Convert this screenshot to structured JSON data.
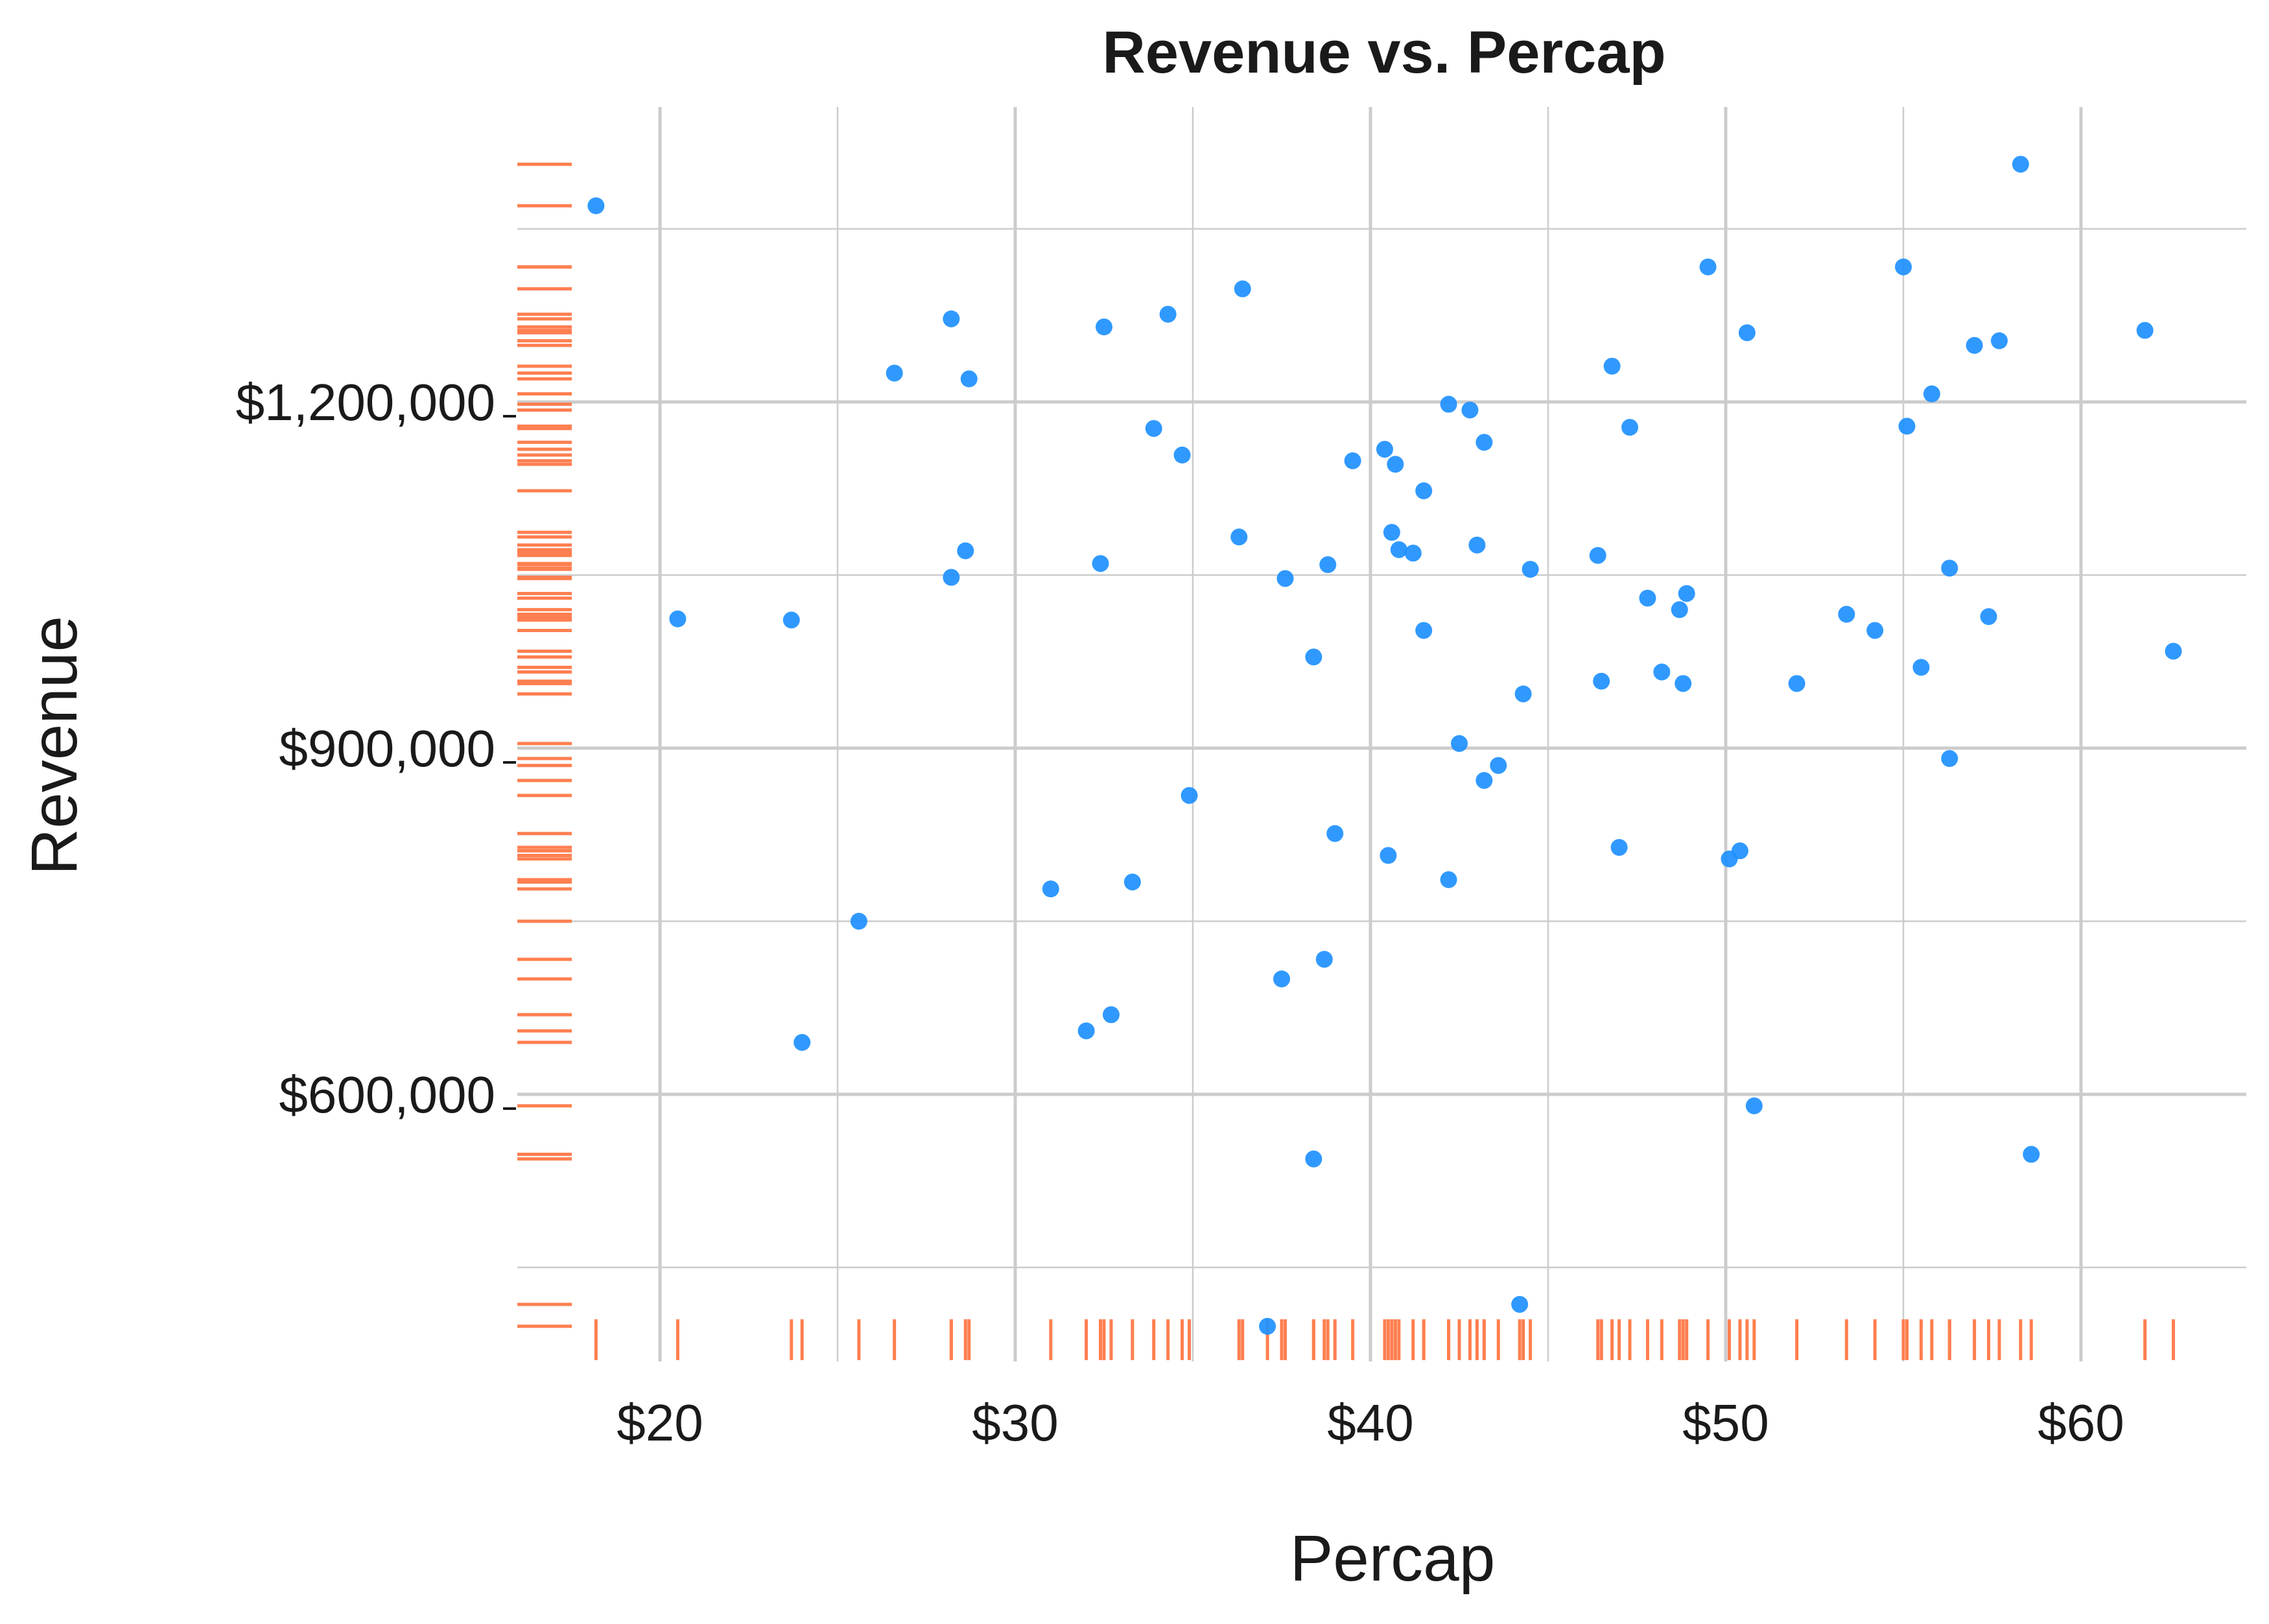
{
  "chart_data": {
    "type": "scatter",
    "title": "Revenue vs. Percap",
    "xlabel": "Percap",
    "ylabel": "Revenue",
    "xlim": [
      15.9,
      65.0
    ],
    "ylim": [
      350000,
      1400000
    ],
    "x_ticks": [
      20,
      30,
      40,
      50,
      60
    ],
    "x_tick_labels": [
      "$20",
      "$30",
      "$40",
      "$50",
      "$60"
    ],
    "y_ticks": [
      600000,
      900000,
      1200000
    ],
    "y_tick_labels": [
      "$600,000",
      "$900,000",
      "$1,200,000"
    ],
    "grid": true,
    "rug": true,
    "colors": {
      "points": "#1E90FF",
      "rug": "#FF7F50",
      "grid": "#CCCCCC",
      "text": "#1A1A1A"
    },
    "points": [
      {
        "x": 18.2,
        "y": 1370000
      },
      {
        "x": 20.5,
        "y": 1012000
      },
      {
        "x": 23.7,
        "y": 1011000
      },
      {
        "x": 24.0,
        "y": 645000
      },
      {
        "x": 25.6,
        "y": 750000
      },
      {
        "x": 26.6,
        "y": 1225000
      },
      {
        "x": 28.2,
        "y": 1048000
      },
      {
        "x": 28.2,
        "y": 1272000
      },
      {
        "x": 28.6,
        "y": 1071000
      },
      {
        "x": 28.7,
        "y": 1220000
      },
      {
        "x": 31.0,
        "y": 778000
      },
      {
        "x": 32.0,
        "y": 655000
      },
      {
        "x": 32.4,
        "y": 1060000
      },
      {
        "x": 32.5,
        "y": 1265000
      },
      {
        "x": 32.7,
        "y": 669000
      },
      {
        "x": 33.3,
        "y": 784000
      },
      {
        "x": 33.9,
        "y": 1177000
      },
      {
        "x": 34.3,
        "y": 1276000
      },
      {
        "x": 34.7,
        "y": 1154000
      },
      {
        "x": 34.9,
        "y": 859000
      },
      {
        "x": 36.3,
        "y": 1083000
      },
      {
        "x": 36.4,
        "y": 1298000
      },
      {
        "x": 37.1,
        "y": 399000
      },
      {
        "x": 37.5,
        "y": 700000
      },
      {
        "x": 37.6,
        "y": 1047000
      },
      {
        "x": 38.4,
        "y": 544000
      },
      {
        "x": 38.4,
        "y": 979000
      },
      {
        "x": 38.7,
        "y": 717000
      },
      {
        "x": 38.8,
        "y": 1059000
      },
      {
        "x": 39.0,
        "y": 826000
      },
      {
        "x": 39.5,
        "y": 1149000
      },
      {
        "x": 40.4,
        "y": 1159000
      },
      {
        "x": 40.5,
        "y": 807000
      },
      {
        "x": 40.6,
        "y": 1087000
      },
      {
        "x": 40.7,
        "y": 1146000
      },
      {
        "x": 40.8,
        "y": 1072000
      },
      {
        "x": 41.2,
        "y": 1069000
      },
      {
        "x": 41.5,
        "y": 1123000
      },
      {
        "x": 41.5,
        "y": 1002000
      },
      {
        "x": 42.2,
        "y": 1198000
      },
      {
        "x": 42.2,
        "y": 786000
      },
      {
        "x": 42.5,
        "y": 904000
      },
      {
        "x": 42.8,
        "y": 1193000
      },
      {
        "x": 43.0,
        "y": 1076000
      },
      {
        "x": 43.2,
        "y": 1165000
      },
      {
        "x": 43.2,
        "y": 872000
      },
      {
        "x": 43.6,
        "y": 885000
      },
      {
        "x": 44.2,
        "y": 418000
      },
      {
        "x": 44.3,
        "y": 947000
      },
      {
        "x": 44.5,
        "y": 1055000
      },
      {
        "x": 46.4,
        "y": 1067000
      },
      {
        "x": 46.5,
        "y": 958000
      },
      {
        "x": 46.8,
        "y": 1231000
      },
      {
        "x": 47.0,
        "y": 814000
      },
      {
        "x": 47.3,
        "y": 1178000
      },
      {
        "x": 47.8,
        "y": 1030000
      },
      {
        "x": 48.2,
        "y": 966000
      },
      {
        "x": 48.7,
        "y": 1020000
      },
      {
        "x": 48.8,
        "y": 956000
      },
      {
        "x": 48.9,
        "y": 1034000
      },
      {
        "x": 49.5,
        "y": 1317000
      },
      {
        "x": 50.1,
        "y": 804000
      },
      {
        "x": 50.4,
        "y": 811000
      },
      {
        "x": 50.6,
        "y": 1260000
      },
      {
        "x": 50.8,
        "y": 590000
      },
      {
        "x": 52.0,
        "y": 956000
      },
      {
        "x": 53.4,
        "y": 1016000
      },
      {
        "x": 54.2,
        "y": 1002000
      },
      {
        "x": 55.0,
        "y": 1317000
      },
      {
        "x": 55.1,
        "y": 1179000
      },
      {
        "x": 55.5,
        "y": 970000
      },
      {
        "x": 55.8,
        "y": 1207000
      },
      {
        "x": 56.3,
        "y": 1056000
      },
      {
        "x": 56.3,
        "y": 891000
      },
      {
        "x": 57.0,
        "y": 1249000
      },
      {
        "x": 57.4,
        "y": 1014000
      },
      {
        "x": 57.7,
        "y": 1253000
      },
      {
        "x": 58.3,
        "y": 1406000
      },
      {
        "x": 58.6,
        "y": 548000
      },
      {
        "x": 61.8,
        "y": 1262000
      },
      {
        "x": 62.6,
        "y": 984000
      }
    ]
  }
}
